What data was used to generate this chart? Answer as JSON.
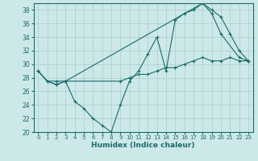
{
  "xlabel": "Humidex (Indice chaleur)",
  "bg_color": "#cde8e8",
  "line_color": "#1a6b6b",
  "grid_color": "#aacccc",
  "xlim": [
    -0.5,
    23.5
  ],
  "ylim": [
    20,
    39
  ],
  "yticks": [
    20,
    22,
    24,
    26,
    28,
    30,
    32,
    34,
    36,
    38
  ],
  "xticks": [
    0,
    1,
    2,
    3,
    4,
    5,
    6,
    7,
    8,
    9,
    10,
    11,
    12,
    13,
    14,
    15,
    16,
    17,
    18,
    19,
    20,
    21,
    22,
    23
  ],
  "series1_x": [
    0,
    1,
    2,
    3,
    4,
    5,
    6,
    7,
    8,
    9,
    10,
    11,
    12,
    13,
    14,
    15,
    16,
    17,
    18,
    19,
    20,
    21,
    22,
    23
  ],
  "series1_y": [
    29.0,
    27.5,
    27.5,
    27.5,
    24.5,
    23.5,
    22.0,
    21.0,
    20.0,
    24.0,
    27.5,
    29.0,
    31.5,
    34.0,
    29.0,
    36.5,
    37.5,
    38.0,
    39.0,
    38.0,
    37.0,
    34.5,
    32.0,
    30.5
  ],
  "series2_x": [
    0,
    1,
    2,
    3,
    9,
    10,
    11,
    12,
    13,
    14,
    15,
    16,
    17,
    18,
    19,
    20,
    21,
    22,
    23
  ],
  "series2_y": [
    29.0,
    27.5,
    27.0,
    27.5,
    27.5,
    28.0,
    28.5,
    28.5,
    29.0,
    29.5,
    29.5,
    30.0,
    30.5,
    31.0,
    30.5,
    30.5,
    31.0,
    30.5,
    30.5
  ],
  "series3_x": [
    0,
    1,
    2,
    3,
    18,
    19,
    20,
    22,
    23
  ],
  "series3_y": [
    29.0,
    27.5,
    27.0,
    27.5,
    39.0,
    37.5,
    34.5,
    31.0,
    30.5
  ]
}
